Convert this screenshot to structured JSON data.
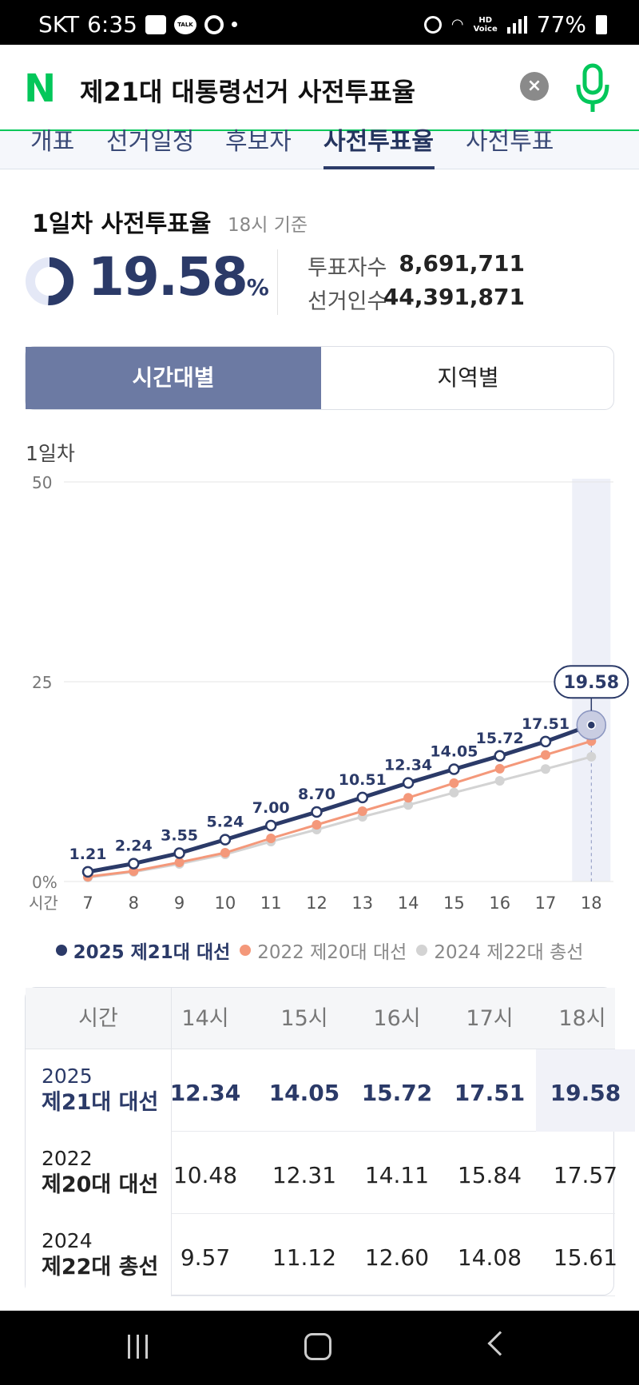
{
  "status_bar": {
    "carrier": "SKT",
    "time": "6:35",
    "battery": "77%",
    "talk_label": "TALK"
  },
  "search": {
    "logo": "N",
    "query": "제21대 대통령선거 사전투표율",
    "clear_icon": "×"
  },
  "tabs": [
    {
      "label": "개표",
      "active": false
    },
    {
      "label": "선거일정",
      "active": false
    },
    {
      "label": "후보자",
      "active": false
    },
    {
      "label": "사전투표율",
      "active": true
    },
    {
      "label": "사전투표",
      "active": false
    }
  ],
  "summary": {
    "title": "1일차 사전투표율",
    "subtitle": "18시 기준",
    "rate": "19.58",
    "rate_unit": "%",
    "rate_fraction": 0.1958,
    "stats": [
      {
        "label": "투표자수",
        "value": "8,691,711"
      },
      {
        "label": "선거인수",
        "value": "44,391,871"
      }
    ]
  },
  "segment": {
    "by_time": "시간대별",
    "by_region": "지역별"
  },
  "chart_label": "1일차",
  "colors": {
    "navy": "#2b3a68",
    "orange": "#f4987a",
    "gray": "#d3d3d3",
    "brand_green": "#03c75a",
    "highlight_band": "#eef0f8"
  },
  "chart_data": {
    "type": "line",
    "x": [
      7,
      8,
      9,
      10,
      11,
      12,
      13,
      14,
      15,
      16,
      17,
      18
    ],
    "x_unit_label": "시간",
    "y_ticks": [
      "0%",
      "25",
      "50"
    ],
    "ylim": [
      0,
      50
    ],
    "grid": true,
    "highlight_x": 18,
    "highlight_label": "19.58",
    "series": [
      {
        "name": "2025 제21대 대선",
        "color": "#2b3a68",
        "values": [
          1.21,
          2.24,
          3.55,
          5.24,
          7.0,
          8.7,
          10.51,
          12.34,
          14.05,
          15.72,
          17.51,
          19.58
        ],
        "labels": [
          "1.21",
          "2.24",
          "3.55",
          "5.24",
          "7.00",
          "8.70",
          "10.51",
          "12.34",
          "14.05",
          "15.72",
          "17.51",
          ""
        ]
      },
      {
        "name": "2022 제20대 대선",
        "color": "#f4987a",
        "values": [
          0.6,
          1.3,
          2.4,
          3.6,
          5.4,
          7.1,
          8.8,
          10.48,
          12.31,
          14.11,
          15.84,
          17.57
        ]
      },
      {
        "name": "2024 제22대 총선",
        "color": "#d3d3d3",
        "values": [
          0.5,
          1.2,
          2.2,
          3.4,
          5.0,
          6.5,
          8.1,
          9.57,
          11.12,
          12.6,
          14.08,
          15.61
        ]
      }
    ],
    "legend_position": "bottom"
  },
  "table": {
    "header_first": "시간",
    "columns": [
      "14시",
      "15시",
      "16시",
      "17시",
      "18시"
    ],
    "rows": [
      {
        "year": "2025",
        "name": "제21대 대선",
        "values": [
          "12.34",
          "14.05",
          "15.72",
          "17.51",
          "19.58"
        ]
      },
      {
        "year": "2022",
        "name": "제20대 대선",
        "values": [
          "10.48",
          "12.31",
          "14.11",
          "15.84",
          "17.57"
        ]
      },
      {
        "year": "2024",
        "name": "제22대 총선",
        "values": [
          "9.57",
          "11.12",
          "12.60",
          "14.08",
          "15.61"
        ]
      }
    ]
  }
}
